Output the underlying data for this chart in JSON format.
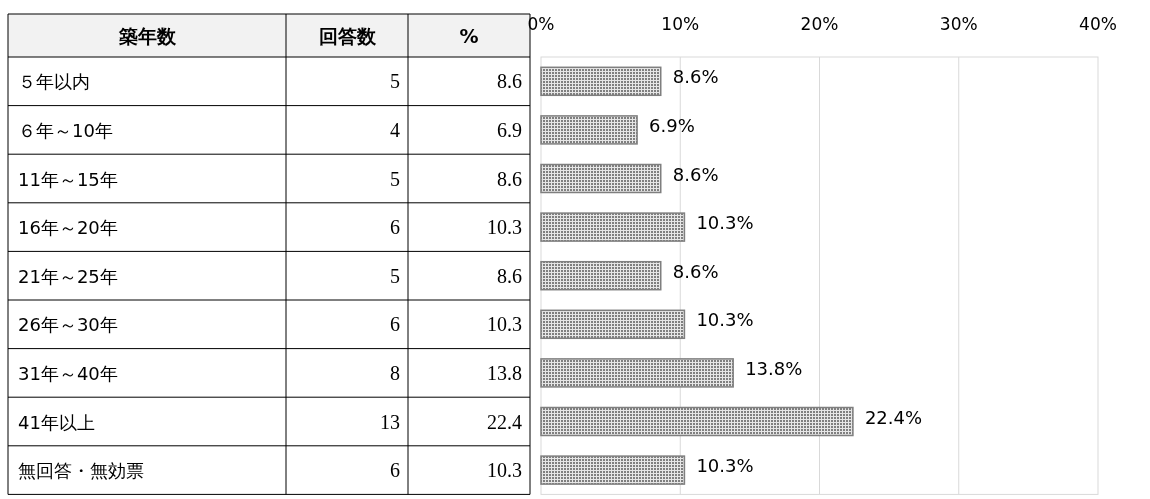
{
  "chart_data": [
    {
      "type": "other",
      "ylabel": "築年数",
      "categories": [
        "５年以内",
        "６年～10年",
        "11年～15年",
        "16年～20年",
        "21年～25年",
        "26年～30年",
        "31年～40年",
        "41年以上",
        "無回答・無効票"
      ],
      "series": [
        {
          "name": "回答数",
          "values": [
            5,
            4,
            5,
            6,
            5,
            6,
            8,
            13,
            6
          ]
        },
        {
          "name": "%",
          "values": [
            8.6,
            6.9,
            8.6,
            10.3,
            8.6,
            10.3,
            13.8,
            22.4,
            10.3
          ]
        }
      ],
      "data_labels": true
    },
    {
      "type": "bar",
      "orientation": "horizontal",
      "categories": [
        null,
        null,
        null,
        null,
        null,
        null,
        null,
        null,
        null
      ],
      "series": [
        {
          "color": "#7f7f7f",
          "values": [
            8.6,
            6.9,
            8.6,
            10.3,
            8.6,
            10.3,
            13.8,
            22.4,
            10.3
          ],
          "value_labels": [
            "8.6%",
            "6.9%",
            "8.6%",
            "10.3%",
            "8.6%",
            "10.3%",
            "13.8%",
            "22.4%",
            "10.3%"
          ]
        }
      ],
      "xlim": [
        0,
        40
      ],
      "xticks": [
        {
          "value": 0,
          "label": "0%"
        },
        {
          "value": 10,
          "label": "10%"
        },
        {
          "value": 20,
          "label": "20%"
        },
        {
          "value": 30,
          "label": "30%"
        },
        {
          "value": 40,
          "label": "40%"
        }
      ],
      "grid": "x"
    }
  ]
}
